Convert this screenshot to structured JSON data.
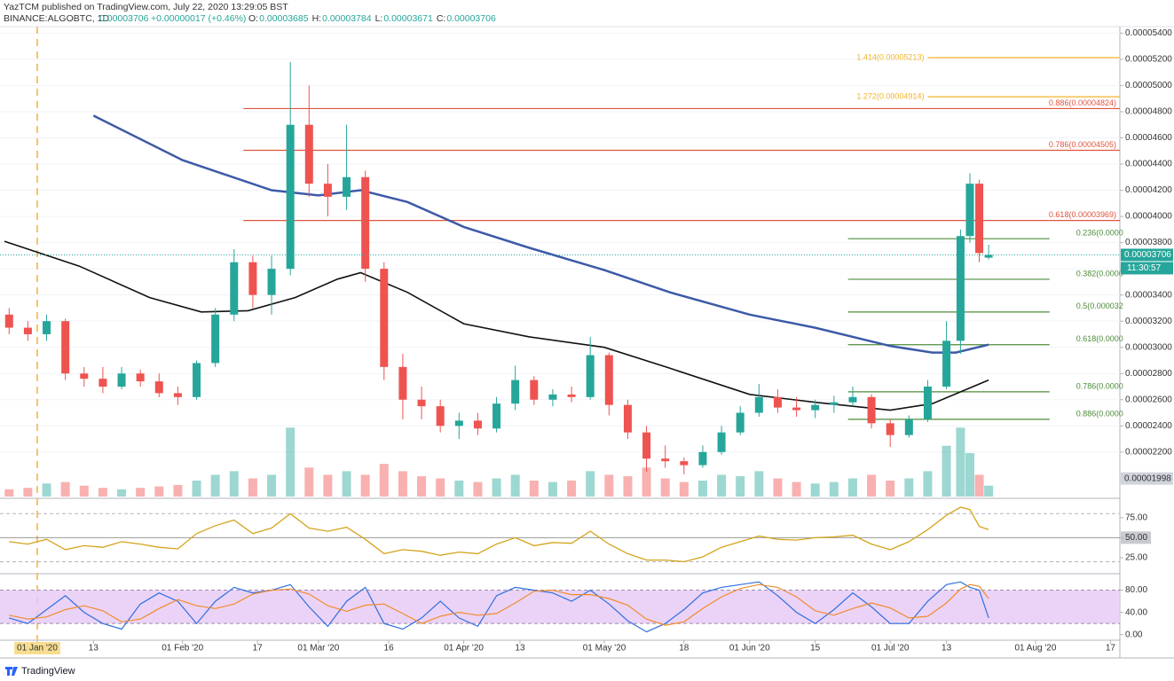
{
  "header": {
    "publisher": "YazTCM published on TradingView.com, July 22, 2020 13:29:05 BST",
    "symbol": "BINANCE:ALGOBTC, 1D",
    "last": "0.00003706",
    "change": "+0.00000017 (+0.46%)",
    "ohlc": [
      {
        "key": "O:",
        "value": "0.00003685"
      },
      {
        "key": "H:",
        "value": "0.00003784"
      },
      {
        "key": "L:",
        "value": "0.00003671"
      },
      {
        "key": "C:",
        "value": "0.00003706"
      }
    ]
  },
  "chart_data": [
    {
      "type": "candlestick",
      "x": [
        "2019-12-26",
        "2019-12-30",
        "2020-01-03",
        "2020-01-07",
        "2020-01-11",
        "2020-01-15",
        "2020-01-19",
        "2020-01-23",
        "2020-01-27",
        "2020-01-31",
        "2020-02-04",
        "2020-02-08",
        "2020-02-12",
        "2020-02-16",
        "2020-02-20",
        "2020-02-24",
        "2020-02-28",
        "2020-03-03",
        "2020-03-07",
        "2020-03-11",
        "2020-03-15",
        "2020-03-19",
        "2020-03-23",
        "2020-03-27",
        "2020-03-31",
        "2020-04-04",
        "2020-04-08",
        "2020-04-12",
        "2020-04-16",
        "2020-04-20",
        "2020-04-24",
        "2020-04-28",
        "2020-05-02",
        "2020-05-06",
        "2020-05-10",
        "2020-05-14",
        "2020-05-18",
        "2020-05-22",
        "2020-05-26",
        "2020-05-30",
        "2020-06-03",
        "2020-06-07",
        "2020-06-11",
        "2020-06-15",
        "2020-06-19",
        "2020-06-23",
        "2020-06-27",
        "2020-07-01",
        "2020-07-05",
        "2020-07-09",
        "2020-07-13",
        "2020-07-16",
        "2020-07-18",
        "2020-07-20",
        "2020-07-22"
      ],
      "open": [
        3.25e-05,
        3.15e-05,
        3.1e-05,
        3.2e-05,
        2.8e-05,
        2.76e-05,
        2.7e-05,
        2.8e-05,
        2.74e-05,
        2.65e-05,
        2.62e-05,
        2.88e-05,
        3.25e-05,
        3.65e-05,
        3.4e-05,
        3.6e-05,
        4.7e-05,
        4.25e-05,
        4.15e-05,
        4.3e-05,
        3.6e-05,
        2.85e-05,
        2.6e-05,
        2.55e-05,
        2.4e-05,
        2.44e-05,
        2.38e-05,
        2.57e-05,
        2.75e-05,
        2.6e-05,
        2.64e-05,
        2.62e-05,
        2.94e-05,
        2.56e-05,
        2.35e-05,
        2.15e-05,
        2.13e-05,
        2.1e-05,
        2.2e-05,
        2.35e-05,
        2.5e-05,
        2.62e-05,
        2.54e-05,
        2.52e-05,
        2.56e-05,
        2.58e-05,
        2.62e-05,
        2.42e-05,
        2.33e-05,
        2.45e-05,
        2.7e-05,
        3.05e-05,
        3.85e-05,
        4.25e-05,
        3.685e-05
      ],
      "high": [
        3.3e-05,
        3.2e-05,
        3.25e-05,
        3.22e-05,
        2.85e-05,
        2.85e-05,
        2.85e-05,
        2.83e-05,
        2.8e-05,
        2.7e-05,
        2.9e-05,
        3.3e-05,
        3.75e-05,
        3.7e-05,
        3.7e-05,
        5.18e-05,
        5e-05,
        4.4e-05,
        4.7e-05,
        4.35e-05,
        3.65e-05,
        2.95e-05,
        2.7e-05,
        2.6e-05,
        2.5e-05,
        2.5e-05,
        2.62e-05,
        2.86e-05,
        2.78e-05,
        2.68e-05,
        2.7e-05,
        3.08e-05,
        2.96e-05,
        2.6e-05,
        2.4e-05,
        2.25e-05,
        2.16e-05,
        2.25e-05,
        2.4e-05,
        2.55e-05,
        2.72e-05,
        2.68e-05,
        2.62e-05,
        2.6e-05,
        2.63e-05,
        2.7e-05,
        2.64e-05,
        2.45e-05,
        2.48e-05,
        2.75e-05,
        3.2e-05,
        3.9e-05,
        4.33e-05,
        4.28e-05,
        3.784e-05
      ],
      "low": [
        3.1e-05,
        3.05e-05,
        3.05e-05,
        2.75e-05,
        2.7e-05,
        2.65e-05,
        2.68e-05,
        2.7e-05,
        2.62e-05,
        2.56e-05,
        2.6e-05,
        2.85e-05,
        3.2e-05,
        3.3e-05,
        3.25e-05,
        3.55e-05,
        4.15e-05,
        4e-05,
        4.05e-05,
        3.5e-05,
        2.75e-05,
        2.45e-05,
        2.45e-05,
        2.35e-05,
        2.3e-05,
        2.33e-05,
        2.35e-05,
        2.52e-05,
        2.56e-05,
        2.55e-05,
        2.58e-05,
        2.6e-05,
        2.48e-05,
        2.3e-05,
        2.05e-05,
        2.08e-05,
        2.03e-05,
        2.08e-05,
        2.18e-05,
        2.33e-05,
        2.47e-05,
        2.5e-05,
        2.47e-05,
        2.46e-05,
        2.5e-05,
        2.55e-05,
        2.38e-05,
        2.24e-05,
        2.31e-05,
        2.43e-05,
        2.68e-05,
        2.95e-05,
        3.8e-05,
        3.65e-05,
        3.671e-05
      ],
      "close": [
        3.15e-05,
        3.1e-05,
        3.2e-05,
        2.8e-05,
        2.76e-05,
        2.7e-05,
        2.8e-05,
        2.74e-05,
        2.65e-05,
        2.62e-05,
        2.88e-05,
        3.25e-05,
        3.65e-05,
        3.4e-05,
        3.6e-05,
        4.7e-05,
        4.25e-05,
        4.15e-05,
        4.3e-05,
        3.6e-05,
        2.85e-05,
        2.6e-05,
        2.55e-05,
        2.4e-05,
        2.44e-05,
        2.38e-05,
        2.57e-05,
        2.75e-05,
        2.6e-05,
        2.64e-05,
        2.62e-05,
        2.94e-05,
        2.56e-05,
        2.35e-05,
        2.15e-05,
        2.13e-05,
        2.1e-05,
        2.2e-05,
        2.35e-05,
        2.5e-05,
        2.62e-05,
        2.54e-05,
        2.52e-05,
        2.56e-05,
        2.58e-05,
        2.62e-05,
        2.42e-05,
        2.33e-05,
        2.45e-05,
        2.7e-05,
        3.05e-05,
        3.85e-05,
        4.25e-05,
        3.72e-05,
        3.706e-05
      ],
      "volume": [
        10,
        12,
        18,
        20,
        15,
        12,
        10,
        12,
        14,
        16,
        22,
        30,
        35,
        25,
        30,
        95,
        40,
        30,
        35,
        30,
        45,
        35,
        28,
        25,
        22,
        20,
        25,
        30,
        22,
        20,
        22,
        35,
        30,
        28,
        40,
        25,
        20,
        22,
        30,
        28,
        35,
        25,
        20,
        18,
        20,
        25,
        30,
        22,
        25,
        35,
        70,
        95,
        60,
        30,
        15
      ],
      "volume_ylim": [
        0,
        110
      ],
      "up_color": "#26a69a",
      "down_color": "#ef5350",
      "xlim": [
        "2019-12-25",
        "2020-08-19"
      ],
      "xticks": [
        {
          "value": "2020-01-01",
          "label": "01 Jan '20"
        },
        {
          "value": "2020-01-13",
          "label": "13"
        },
        {
          "value": "2020-02-01",
          "label": "01 Feb '20"
        },
        {
          "value": "2020-02-17",
          "label": "17"
        },
        {
          "value": "2020-03-01",
          "label": "01 Mar '20"
        },
        {
          "value": "2020-03-16",
          "label": "16"
        },
        {
          "value": "2020-04-01",
          "label": "01 Apr '20"
        },
        {
          "value": "2020-04-13",
          "label": "13"
        },
        {
          "value": "2020-05-01",
          "label": "01 May '20"
        },
        {
          "value": "2020-05-18",
          "label": "18"
        },
        {
          "value": "2020-06-01",
          "label": "01 Jun '20"
        },
        {
          "value": "2020-06-15",
          "label": "15"
        },
        {
          "value": "2020-07-01",
          "label": "01 Jul '20"
        },
        {
          "value": "2020-07-13",
          "label": "13"
        },
        {
          "value": "2020-08-01",
          "label": "01 Aug '20"
        },
        {
          "value": "2020-08-17",
          "label": "17"
        }
      ],
      "ylim": [
        1.86e-05,
        5.45e-05
      ],
      "yticks": [
        {
          "value": 2.2e-05,
          "label": "0.00002200"
        },
        {
          "value": 2.4e-05,
          "label": "0.00002400"
        },
        {
          "value": 2.6e-05,
          "label": "0.00002600"
        },
        {
          "value": 2.8e-05,
          "label": "0.00002800"
        },
        {
          "value": 3e-05,
          "label": "0.00003000"
        },
        {
          "value": 3.2e-05,
          "label": "0.00003200"
        },
        {
          "value": 3.4e-05,
          "label": "0.00003400"
        },
        {
          "value": 3.6e-05,
          "label": "0.00003600"
        },
        {
          "value": 3.8e-05,
          "label": "0.00003800"
        },
        {
          "value": 4e-05,
          "label": "0.00004000"
        },
        {
          "value": 4.2e-05,
          "label": "0.00004200"
        },
        {
          "value": 4.4e-05,
          "label": "0.00004400"
        },
        {
          "value": 4.6e-05,
          "label": "0.00004600"
        },
        {
          "value": 4.8e-05,
          "label": "0.00004800"
        },
        {
          "value": 5e-05,
          "label": "0.00005000"
        },
        {
          "value": 5.2e-05,
          "label": "0.00005200"
        },
        {
          "value": 5.4e-05,
          "label": "0.00005400"
        }
      ],
      "grid": true,
      "countdown": "11:30:57",
      "low_marker": 1.998e-05,
      "event_line": "2020-01-01",
      "moving_averages": [
        {
          "color": "#3d5aa8",
          "x": [
            "2020-01-13",
            "2020-02-01",
            "2020-02-20",
            "2020-03-01",
            "2020-03-10",
            "2020-03-20",
            "2020-04-01",
            "2020-04-15",
            "2020-05-01",
            "2020-05-15",
            "2020-06-01",
            "2020-06-15",
            "2020-07-01",
            "2020-07-10",
            "2020-07-15",
            "2020-07-22"
          ],
          "values": [
            4.77e-05,
            4.43e-05,
            4.2e-05,
            4.16e-05,
            4.2e-05,
            4.11e-05,
            3.92e-05,
            3.76e-05,
            3.59e-05,
            3.42e-05,
            3.25e-05,
            3.15e-05,
            3.01e-05,
            2.96e-05,
            2.96e-05,
            3.02e-05
          ]
        },
        {
          "color": "#111111",
          "x": [
            "2019-12-25",
            "2020-01-10",
            "2020-01-25",
            "2020-02-05",
            "2020-02-15",
            "2020-02-25",
            "2020-03-05",
            "2020-03-10",
            "2020-03-20",
            "2020-04-01",
            "2020-04-15",
            "2020-05-01",
            "2020-05-15",
            "2020-06-01",
            "2020-06-15",
            "2020-07-01",
            "2020-07-10",
            "2020-07-22"
          ],
          "values": [
            3.81e-05,
            3.62e-05,
            3.38e-05,
            3.27e-05,
            3.28e-05,
            3.38e-05,
            3.52e-05,
            3.57e-05,
            3.42e-05,
            3.18e-05,
            3.08e-05,
            3e-05,
            2.84e-05,
            2.64e-05,
            2.58e-05,
            2.52e-05,
            2.57e-05,
            2.75e-05
          ]
        }
      ],
      "fib_levels": [
        {
          "label": "1.414(0.00005213)",
          "value": 5.213e-05,
          "color": "#f0b429",
          "from": "2020-07-09",
          "label_side": "before"
        },
        {
          "label": "1.272(0.00004914)",
          "value": 4.914e-05,
          "color": "#f0b429",
          "from": "2020-07-09",
          "label_side": "before"
        },
        {
          "label": "0.886(0.00004824)",
          "value": 4.824e-05,
          "color": "#e0533f",
          "from": "2020-02-14",
          "label_side": "right"
        },
        {
          "label": "0.786(0.00004505)",
          "value": 4.505e-05,
          "color": "#e0533f",
          "from": "2020-02-14",
          "label_side": "right"
        },
        {
          "label": "0.618(0.00003969)",
          "value": 3.969e-05,
          "color": "#e0533f",
          "from": "2020-02-14",
          "label_side": "right"
        },
        {
          "label": "0.236(0.0000",
          "value": 3.83e-05,
          "color": "#4e8c3a",
          "from": "2020-06-22",
          "to": "2020-08-04",
          "label_side": "after"
        },
        {
          "label": "0.382(0.0000",
          "value": 3.52e-05,
          "color": "#4e8c3a",
          "from": "2020-06-22",
          "to": "2020-08-04",
          "label_side": "after"
        },
        {
          "label": "0.5(0.000032",
          "value": 3.27e-05,
          "color": "#4e8c3a",
          "from": "2020-06-22",
          "to": "2020-08-04",
          "label_side": "after"
        },
        {
          "label": "0.618(0.0000",
          "value": 3.02e-05,
          "color": "#4e8c3a",
          "from": "2020-06-22",
          "to": "2020-08-04",
          "label_side": "after"
        },
        {
          "label": "0.786(0.0000",
          "value": 2.66e-05,
          "color": "#4e8c3a",
          "from": "2020-06-22",
          "to": "2020-08-04",
          "label_side": "after"
        },
        {
          "label": "0.886(0.0000",
          "value": 2.45e-05,
          "color": "#4e8c3a",
          "from": "2020-06-22",
          "to": "2020-08-04",
          "label_side": "after"
        }
      ]
    },
    {
      "type": "line",
      "color": "#d4a41c",
      "values": [
        45,
        42,
        48,
        35,
        40,
        38,
        45,
        42,
        38,
        36,
        55,
        65,
        72,
        55,
        62,
        80,
        62,
        58,
        63,
        48,
        30,
        35,
        33,
        28,
        32,
        30,
        42,
        50,
        40,
        44,
        43,
        58,
        42,
        30,
        22,
        22,
        20,
        26,
        38,
        45,
        52,
        48,
        47,
        50,
        51,
        53,
        42,
        35,
        45,
        60,
        78,
        88,
        85,
        64,
        60
      ],
      "ylim": [
        5,
        98
      ],
      "yticks": [
        {
          "value": 25,
          "label": "25.00"
        },
        {
          "value": 50,
          "label": "50.00"
        },
        {
          "value": 75,
          "label": "75.00"
        }
      ],
      "bands": [
        20,
        80
      ],
      "reference_line": 50
    },
    {
      "type": "line",
      "series": [
        {
          "color": "#2f6fe0",
          "values": [
            30,
            20,
            45,
            70,
            40,
            20,
            10,
            55,
            75,
            60,
            20,
            60,
            85,
            75,
            80,
            90,
            50,
            15,
            60,
            85,
            20,
            10,
            30,
            60,
            30,
            15,
            70,
            85,
            80,
            75,
            60,
            80,
            55,
            25,
            5,
            20,
            45,
            75,
            85,
            90,
            95,
            70,
            40,
            20,
            45,
            75,
            50,
            20,
            20,
            60,
            90,
            95,
            85,
            80,
            30
          ]
        },
        {
          "color": "#f08c2a",
          "values": [
            35,
            28,
            32,
            45,
            52,
            43,
            23,
            28,
            47,
            63,
            52,
            47,
            55,
            73,
            80,
            82,
            73,
            52,
            42,
            53,
            55,
            38,
            20,
            33,
            40,
            35,
            38,
            57,
            78,
            80,
            72,
            72,
            65,
            53,
            28,
            17,
            23,
            47,
            68,
            83,
            90,
            85,
            68,
            43,
            35,
            47,
            57,
            48,
            30,
            33,
            57,
            82,
            90,
            87,
            65
          ]
        }
      ],
      "ylim": [
        -10,
        108
      ],
      "yticks": [
        {
          "value": 0,
          "label": "0.00"
        },
        {
          "value": 40,
          "label": "40.00"
        },
        {
          "value": 80,
          "label": "80.00"
        }
      ],
      "band": [
        20,
        80
      ],
      "band_color": "#e6c8f5"
    }
  ],
  "footer": {
    "brand": "TradingView"
  }
}
